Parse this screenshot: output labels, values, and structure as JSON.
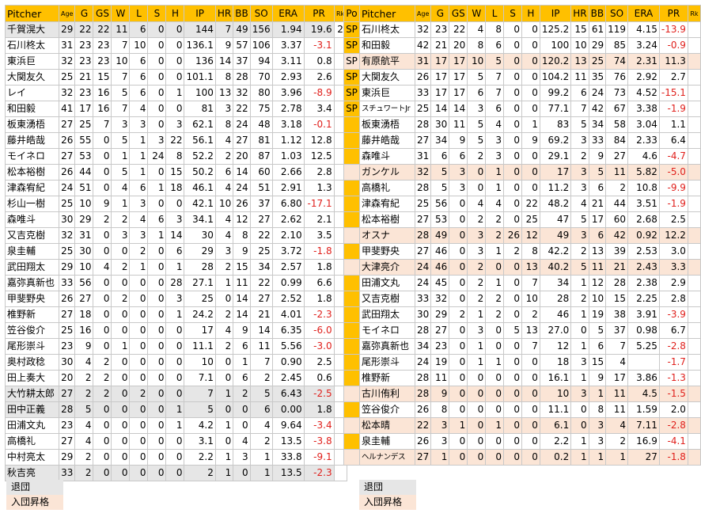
{
  "headers": [
    "Pitcher",
    "Age",
    "G",
    "GS",
    "W",
    "L",
    "S",
    "H",
    "IP",
    "HR",
    "BB",
    "SO",
    "ERA",
    "PR",
    "Rk"
  ],
  "pos_header": "Po",
  "left": [
    {
      "name": "千賀滉大",
      "age": "29",
      "g": "22",
      "gs": "22",
      "w": "11",
      "l": "6",
      "s": "0",
      "h": "0",
      "ip": "144",
      "hr": "7",
      "bb": "49",
      "so": "156",
      "era": "1.94",
      "pr": "19.6",
      "rk": "2",
      "hl": "gray"
    },
    {
      "name": "石川柊太",
      "age": "31",
      "g": "23",
      "gs": "23",
      "w": "7",
      "l": "10",
      "s": "0",
      "h": "0",
      "ip": "136.1",
      "hr": "9",
      "bb": "57",
      "so": "106",
      "era": "3.37",
      "pr": "-3.1",
      "rk": "",
      "hl": ""
    },
    {
      "name": "東浜巨",
      "age": "32",
      "g": "23",
      "gs": "23",
      "w": "10",
      "l": "6",
      "s": "0",
      "h": "0",
      "ip": "136",
      "hr": "14",
      "bb": "37",
      "so": "94",
      "era": "3.11",
      "pr": "0.8",
      "rk": "",
      "hl": ""
    },
    {
      "name": "大関友久",
      "age": "25",
      "g": "21",
      "gs": "15",
      "w": "7",
      "l": "6",
      "s": "0",
      "h": "0",
      "ip": "101.1",
      "hr": "8",
      "bb": "28",
      "so": "70",
      "era": "2.93",
      "pr": "2.6",
      "rk": "",
      "hl": ""
    },
    {
      "name": "レイ",
      "age": "32",
      "g": "23",
      "gs": "16",
      "w": "5",
      "l": "6",
      "s": "0",
      "h": "1",
      "ip": "100",
      "hr": "13",
      "bb": "32",
      "so": "80",
      "era": "3.96",
      "pr": "-8.9",
      "rk": "",
      "hl": ""
    },
    {
      "name": "和田毅",
      "age": "41",
      "g": "17",
      "gs": "16",
      "w": "7",
      "l": "4",
      "s": "0",
      "h": "0",
      "ip": "81",
      "hr": "3",
      "bb": "22",
      "so": "75",
      "era": "2.78",
      "pr": "3.4",
      "rk": "",
      "hl": ""
    },
    {
      "name": "板東湧梧",
      "age": "27",
      "g": "25",
      "gs": "7",
      "w": "3",
      "l": "3",
      "s": "0",
      "h": "3",
      "ip": "62.1",
      "hr": "8",
      "bb": "24",
      "so": "48",
      "era": "3.18",
      "pr": "-0.1",
      "rk": "",
      "hl": ""
    },
    {
      "name": "藤井皓哉",
      "age": "26",
      "g": "55",
      "gs": "0",
      "w": "5",
      "l": "1",
      "s": "3",
      "h": "22",
      "ip": "56.1",
      "hr": "4",
      "bb": "27",
      "so": "81",
      "era": "1.12",
      "pr": "12.8",
      "rk": "",
      "hl": ""
    },
    {
      "name": "モイネロ",
      "age": "27",
      "g": "53",
      "gs": "0",
      "w": "1",
      "l": "1",
      "s": "24",
      "h": "8",
      "ip": "52.2",
      "hr": "2",
      "bb": "20",
      "so": "87",
      "era": "1.03",
      "pr": "12.5",
      "rk": "",
      "hl": ""
    },
    {
      "name": "松本裕樹",
      "age": "26",
      "g": "44",
      "gs": "0",
      "w": "5",
      "l": "1",
      "s": "0",
      "h": "15",
      "ip": "50.2",
      "hr": "6",
      "bb": "14",
      "so": "60",
      "era": "2.66",
      "pr": "2.8",
      "rk": "",
      "hl": ""
    },
    {
      "name": "津森宥紀",
      "age": "24",
      "g": "51",
      "gs": "0",
      "w": "4",
      "l": "6",
      "s": "1",
      "h": "18",
      "ip": "46.1",
      "hr": "4",
      "bb": "24",
      "so": "51",
      "era": "2.91",
      "pr": "1.3",
      "rk": "",
      "hl": ""
    },
    {
      "name": "杉山一樹",
      "age": "25",
      "g": "10",
      "gs": "9",
      "w": "1",
      "l": "3",
      "s": "0",
      "h": "0",
      "ip": "42.1",
      "hr": "10",
      "bb": "26",
      "so": "37",
      "era": "6.80",
      "pr": "-17.1",
      "rk": "",
      "hl": ""
    },
    {
      "name": "森唯斗",
      "age": "30",
      "g": "29",
      "gs": "2",
      "w": "2",
      "l": "4",
      "s": "6",
      "h": "3",
      "ip": "34.1",
      "hr": "4",
      "bb": "12",
      "so": "27",
      "era": "2.62",
      "pr": "2.1",
      "rk": "",
      "hl": ""
    },
    {
      "name": "又吉克樹",
      "age": "32",
      "g": "31",
      "gs": "0",
      "w": "3",
      "l": "3",
      "s": "1",
      "h": "14",
      "ip": "30",
      "hr": "4",
      "bb": "8",
      "so": "22",
      "era": "2.10",
      "pr": "3.5",
      "rk": "",
      "hl": ""
    },
    {
      "name": "泉圭輔",
      "age": "25",
      "g": "30",
      "gs": "0",
      "w": "0",
      "l": "2",
      "s": "0",
      "h": "6",
      "ip": "29",
      "hr": "3",
      "bb": "9",
      "so": "25",
      "era": "3.72",
      "pr": "-1.8",
      "rk": "",
      "hl": ""
    },
    {
      "name": "武田翔太",
      "age": "29",
      "g": "10",
      "gs": "4",
      "w": "2",
      "l": "1",
      "s": "0",
      "h": "1",
      "ip": "28",
      "hr": "2",
      "bb": "15",
      "so": "34",
      "era": "2.57",
      "pr": "1.8",
      "rk": "",
      "hl": ""
    },
    {
      "name": "嘉弥真新也",
      "age": "33",
      "g": "56",
      "gs": "0",
      "w": "0",
      "l": "0",
      "s": "0",
      "h": "28",
      "ip": "27.1",
      "hr": "1",
      "bb": "11",
      "so": "22",
      "era": "0.99",
      "pr": "6.6",
      "rk": "",
      "hl": ""
    },
    {
      "name": "甲斐野央",
      "age": "26",
      "g": "27",
      "gs": "0",
      "w": "2",
      "l": "0",
      "s": "0",
      "h": "3",
      "ip": "25",
      "hr": "0",
      "bb": "14",
      "so": "27",
      "era": "2.52",
      "pr": "1.8",
      "rk": "",
      "hl": ""
    },
    {
      "name": "椎野新",
      "age": "27",
      "g": "18",
      "gs": "0",
      "w": "0",
      "l": "0",
      "s": "0",
      "h": "1",
      "ip": "24.2",
      "hr": "2",
      "bb": "14",
      "so": "21",
      "era": "4.01",
      "pr": "-2.3",
      "rk": "",
      "hl": ""
    },
    {
      "name": "笠谷俊介",
      "age": "25",
      "g": "16",
      "gs": "0",
      "w": "0",
      "l": "0",
      "s": "0",
      "h": "0",
      "ip": "17",
      "hr": "4",
      "bb": "9",
      "so": "14",
      "era": "6.35",
      "pr": "-6.0",
      "rk": "",
      "hl": ""
    },
    {
      "name": "尾形崇斗",
      "age": "23",
      "g": "9",
      "gs": "0",
      "w": "1",
      "l": "0",
      "s": "0",
      "h": "0",
      "ip": "11.1",
      "hr": "2",
      "bb": "6",
      "so": "11",
      "era": "5.56",
      "pr": "-3.0",
      "rk": "",
      "hl": ""
    },
    {
      "name": "奥村政稔",
      "age": "30",
      "g": "4",
      "gs": "2",
      "w": "0",
      "l": "0",
      "s": "0",
      "h": "0",
      "ip": "10",
      "hr": "0",
      "bb": "1",
      "so": "7",
      "era": "0.90",
      "pr": "2.5",
      "rk": "",
      "hl": ""
    },
    {
      "name": "田上奏大",
      "age": "20",
      "g": "2",
      "gs": "2",
      "w": "0",
      "l": "0",
      "s": "0",
      "h": "0",
      "ip": "7.1",
      "hr": "0",
      "bb": "6",
      "so": "2",
      "era": "2.45",
      "pr": "0.6",
      "rk": "",
      "hl": ""
    },
    {
      "name": "大竹耕太郎",
      "age": "27",
      "g": "2",
      "gs": "2",
      "w": "0",
      "l": "2",
      "s": "0",
      "h": "0",
      "ip": "7",
      "hr": "1",
      "bb": "2",
      "so": "5",
      "era": "6.43",
      "pr": "-2.5",
      "rk": "",
      "hl": "gray"
    },
    {
      "name": "田中正義",
      "age": "28",
      "g": "5",
      "gs": "0",
      "w": "0",
      "l": "0",
      "s": "0",
      "h": "1",
      "ip": "5",
      "hr": "0",
      "bb": "0",
      "so": "6",
      "era": "0.00",
      "pr": "1.8",
      "rk": "",
      "hl": "gray"
    },
    {
      "name": "田浦文丸",
      "age": "23",
      "g": "4",
      "gs": "0",
      "w": "0",
      "l": "0",
      "s": "0",
      "h": "1",
      "ip": "4.2",
      "hr": "1",
      "bb": "0",
      "so": "4",
      "era": "9.64",
      "pr": "-3.4",
      "rk": "",
      "hl": ""
    },
    {
      "name": "高橋礼",
      "age": "27",
      "g": "4",
      "gs": "0",
      "w": "0",
      "l": "0",
      "s": "0",
      "h": "0",
      "ip": "3.1",
      "hr": "0",
      "bb": "4",
      "so": "2",
      "era": "13.5",
      "pr": "-3.8",
      "rk": "",
      "hl": ""
    },
    {
      "name": "中村亮太",
      "age": "29",
      "g": "2",
      "gs": "0",
      "w": "0",
      "l": "0",
      "s": "0",
      "h": "0",
      "ip": "2.2",
      "hr": "1",
      "bb": "3",
      "so": "1",
      "era": "33.8",
      "pr": "-9.1",
      "rk": "",
      "hl": ""
    },
    {
      "name": "秋吉亮",
      "age": "33",
      "g": "2",
      "gs": "0",
      "w": "0",
      "l": "0",
      "s": "0",
      "h": "0",
      "ip": "2",
      "hr": "1",
      "bb": "0",
      "so": "1",
      "era": "13.5",
      "pr": "-2.3",
      "rk": "",
      "hl": "gray"
    }
  ],
  "right": [
    {
      "pos": "SP",
      "name": "石川柊太",
      "age": "32",
      "g": "23",
      "gs": "22",
      "w": "4",
      "l": "8",
      "s": "0",
      "h": "0",
      "ip": "125.2",
      "hr": "15",
      "bb": "61",
      "so": "119",
      "era": "4.15",
      "pr": "-13.9",
      "hl": ""
    },
    {
      "pos": "SP",
      "name": "和田毅",
      "age": "42",
      "g": "21",
      "gs": "20",
      "w": "8",
      "l": "6",
      "s": "0",
      "h": "0",
      "ip": "100",
      "hr": "10",
      "bb": "29",
      "so": "85",
      "era": "3.24",
      "pr": "-0.9",
      "hl": ""
    },
    {
      "pos": "SP",
      "name": "有原航平",
      "age": "31",
      "g": "17",
      "gs": "17",
      "w": "10",
      "l": "5",
      "s": "0",
      "h": "0",
      "ip": "120.2",
      "hr": "13",
      "bb": "25",
      "so": "74",
      "era": "2.31",
      "pr": "11.3",
      "hl": "pink"
    },
    {
      "pos": "SP",
      "name": "大関友久",
      "age": "26",
      "g": "17",
      "gs": "17",
      "w": "5",
      "l": "7",
      "s": "0",
      "h": "0",
      "ip": "104.2",
      "hr": "11",
      "bb": "35",
      "so": "76",
      "era": "2.92",
      "pr": "2.7",
      "hl": ""
    },
    {
      "pos": "SP",
      "name": "東浜巨",
      "age": "33",
      "g": "17",
      "gs": "17",
      "w": "6",
      "l": "7",
      "s": "0",
      "h": "0",
      "ip": "99.2",
      "hr": "6",
      "bb": "24",
      "so": "73",
      "era": "4.52",
      "pr": "-15.1",
      "hl": ""
    },
    {
      "pos": "SP",
      "name": "スチュワートJr",
      "age": "25",
      "g": "14",
      "gs": "14",
      "w": "3",
      "l": "6",
      "s": "0",
      "h": "0",
      "ip": "77.1",
      "hr": "7",
      "bb": "42",
      "so": "67",
      "era": "3.38",
      "pr": "-1.9",
      "hl": "",
      "narrow": true
    },
    {
      "pos": "",
      "name": "板東湧梧",
      "age": "28",
      "g": "30",
      "gs": "11",
      "w": "5",
      "l": "4",
      "s": "0",
      "h": "1",
      "ip": "83",
      "hr": "5",
      "bb": "34",
      "so": "58",
      "era": "3.04",
      "pr": "1.1",
      "hl": ""
    },
    {
      "pos": "",
      "name": "藤井皓哉",
      "age": "27",
      "g": "34",
      "gs": "9",
      "w": "5",
      "l": "3",
      "s": "0",
      "h": "9",
      "ip": "69.2",
      "hr": "3",
      "bb": "33",
      "so": "84",
      "era": "2.33",
      "pr": "6.4",
      "hl": ""
    },
    {
      "pos": "",
      "name": "森唯斗",
      "age": "31",
      "g": "6",
      "gs": "6",
      "w": "2",
      "l": "3",
      "s": "0",
      "h": "0",
      "ip": "29.1",
      "hr": "2",
      "bb": "9",
      "so": "27",
      "era": "4.6",
      "pr": "-4.7",
      "hl": ""
    },
    {
      "pos": "",
      "name": "ガンケル",
      "age": "32",
      "g": "5",
      "gs": "3",
      "w": "0",
      "l": "1",
      "s": "0",
      "h": "0",
      "ip": "17",
      "hr": "3",
      "bb": "5",
      "so": "11",
      "era": "5.82",
      "pr": "-5.0",
      "hl": "pink"
    },
    {
      "pos": "",
      "name": "高橋礼",
      "age": "28",
      "g": "5",
      "gs": "3",
      "w": "0",
      "l": "1",
      "s": "0",
      "h": "0",
      "ip": "11.2",
      "hr": "3",
      "bb": "6",
      "so": "2",
      "era": "10.8",
      "pr": "-9.9",
      "hl": ""
    },
    {
      "pos": "",
      "name": "津森宥紀",
      "age": "25",
      "g": "56",
      "gs": "0",
      "w": "4",
      "l": "4",
      "s": "0",
      "h": "22",
      "ip": "48.2",
      "hr": "4",
      "bb": "21",
      "so": "44",
      "era": "3.51",
      "pr": "-1.9",
      "hl": ""
    },
    {
      "pos": "",
      "name": "松本裕樹",
      "age": "27",
      "g": "53",
      "gs": "0",
      "w": "2",
      "l": "2",
      "s": "0",
      "h": "25",
      "ip": "47",
      "hr": "5",
      "bb": "17",
      "so": "60",
      "era": "2.68",
      "pr": "2.5",
      "hl": ""
    },
    {
      "pos": "",
      "name": "オスナ",
      "age": "28",
      "g": "49",
      "gs": "0",
      "w": "3",
      "l": "2",
      "s": "26",
      "h": "12",
      "ip": "49",
      "hr": "3",
      "bb": "6",
      "so": "42",
      "era": "0.92",
      "pr": "12.2",
      "hl": "pink"
    },
    {
      "pos": "",
      "name": "甲斐野央",
      "age": "27",
      "g": "46",
      "gs": "0",
      "w": "3",
      "l": "1",
      "s": "2",
      "h": "8",
      "ip": "42.2",
      "hr": "2",
      "bb": "13",
      "so": "39",
      "era": "2.53",
      "pr": "3.0",
      "hl": ""
    },
    {
      "pos": "",
      "name": "大津亮介",
      "age": "24",
      "g": "46",
      "gs": "0",
      "w": "2",
      "l": "0",
      "s": "0",
      "h": "13",
      "ip": "40.2",
      "hr": "5",
      "bb": "11",
      "so": "21",
      "era": "2.43",
      "pr": "3.3",
      "hl": "pink"
    },
    {
      "pos": "",
      "name": "田浦文丸",
      "age": "24",
      "g": "45",
      "gs": "0",
      "w": "2",
      "l": "1",
      "s": "0",
      "h": "7",
      "ip": "34",
      "hr": "1",
      "bb": "12",
      "so": "28",
      "era": "2.38",
      "pr": "2.9",
      "hl": ""
    },
    {
      "pos": "",
      "name": "又吉克樹",
      "age": "33",
      "g": "32",
      "gs": "0",
      "w": "2",
      "l": "2",
      "s": "0",
      "h": "10",
      "ip": "28",
      "hr": "2",
      "bb": "10",
      "so": "15",
      "era": "2.25",
      "pr": "2.8",
      "hl": ""
    },
    {
      "pos": "",
      "name": "武田翔太",
      "age": "30",
      "g": "29",
      "gs": "2",
      "w": "1",
      "l": "2",
      "s": "0",
      "h": "2",
      "ip": "46",
      "hr": "1",
      "bb": "19",
      "so": "38",
      "era": "3.91",
      "pr": "-3.9",
      "hl": ""
    },
    {
      "pos": "",
      "name": "モイネロ",
      "age": "28",
      "g": "27",
      "gs": "0",
      "w": "3",
      "l": "0",
      "s": "5",
      "h": "13",
      "ip": "27.0",
      "hr": "0",
      "bb": "5",
      "so": "37",
      "era": "0.98",
      "pr": "6.7",
      "hl": ""
    },
    {
      "pos": "",
      "name": "嘉弥真新也",
      "age": "34",
      "g": "23",
      "gs": "0",
      "w": "1",
      "l": "0",
      "s": "0",
      "h": "7",
      "ip": "12",
      "hr": "1",
      "bb": "6",
      "so": "7",
      "era": "5.25",
      "pr": "-2.8",
      "hl": ""
    },
    {
      "pos": "",
      "name": "尾形崇斗",
      "age": "24",
      "g": "19",
      "gs": "0",
      "w": "1",
      "l": "1",
      "s": "0",
      "h": "0",
      "ip": "18",
      "hr": "3",
      "bb": "15",
      "so": "4",
      "era": "",
      "pr": "-1.7",
      "hl": ""
    },
    {
      "pos": "",
      "name": "椎野新",
      "age": "28",
      "g": "11",
      "gs": "0",
      "w": "0",
      "l": "0",
      "s": "0",
      "h": "0",
      "ip": "16.1",
      "hr": "1",
      "bb": "9",
      "so": "17",
      "era": "3.86",
      "pr": "-1.3",
      "hl": ""
    },
    {
      "pos": "",
      "name": "古川侑利",
      "age": "28",
      "g": "9",
      "gs": "0",
      "w": "0",
      "l": "0",
      "s": "0",
      "h": "0",
      "ip": "10",
      "hr": "3",
      "bb": "1",
      "so": "11",
      "era": "4.5",
      "pr": "-1.5",
      "hl": "pink"
    },
    {
      "pos": "",
      "name": "笠谷俊介",
      "age": "26",
      "g": "8",
      "gs": "0",
      "w": "0",
      "l": "0",
      "s": "0",
      "h": "0",
      "ip": "11.1",
      "hr": "0",
      "bb": "8",
      "so": "11",
      "era": "1.59",
      "pr": "2.0",
      "hl": ""
    },
    {
      "pos": "",
      "name": "松本晴",
      "age": "22",
      "g": "3",
      "gs": "1",
      "w": "0",
      "l": "1",
      "s": "0",
      "h": "0",
      "ip": "6.1",
      "hr": "0",
      "bb": "3",
      "so": "4",
      "era": "7.11",
      "pr": "-2.8",
      "hl": "pink"
    },
    {
      "pos": "",
      "name": "泉圭輔",
      "age": "26",
      "g": "3",
      "gs": "0",
      "w": "0",
      "l": "0",
      "s": "0",
      "h": "0",
      "ip": "2.2",
      "hr": "1",
      "bb": "3",
      "so": "2",
      "era": "16.9",
      "pr": "-4.1",
      "hl": ""
    },
    {
      "pos": "",
      "name": "ヘルナンデス",
      "age": "27",
      "g": "1",
      "gs": "0",
      "w": "0",
      "l": "0",
      "s": "0",
      "h": "0",
      "ip": "0.2",
      "hr": "1",
      "bb": "1",
      "so": "1",
      "era": "27",
      "pr": "-1.8",
      "hl": "pink",
      "narrow": true
    }
  ],
  "legend": {
    "left_gray": "退団",
    "left_pink": "入団昇格",
    "right_gray": "退団",
    "right_pink": "入団昇格"
  }
}
